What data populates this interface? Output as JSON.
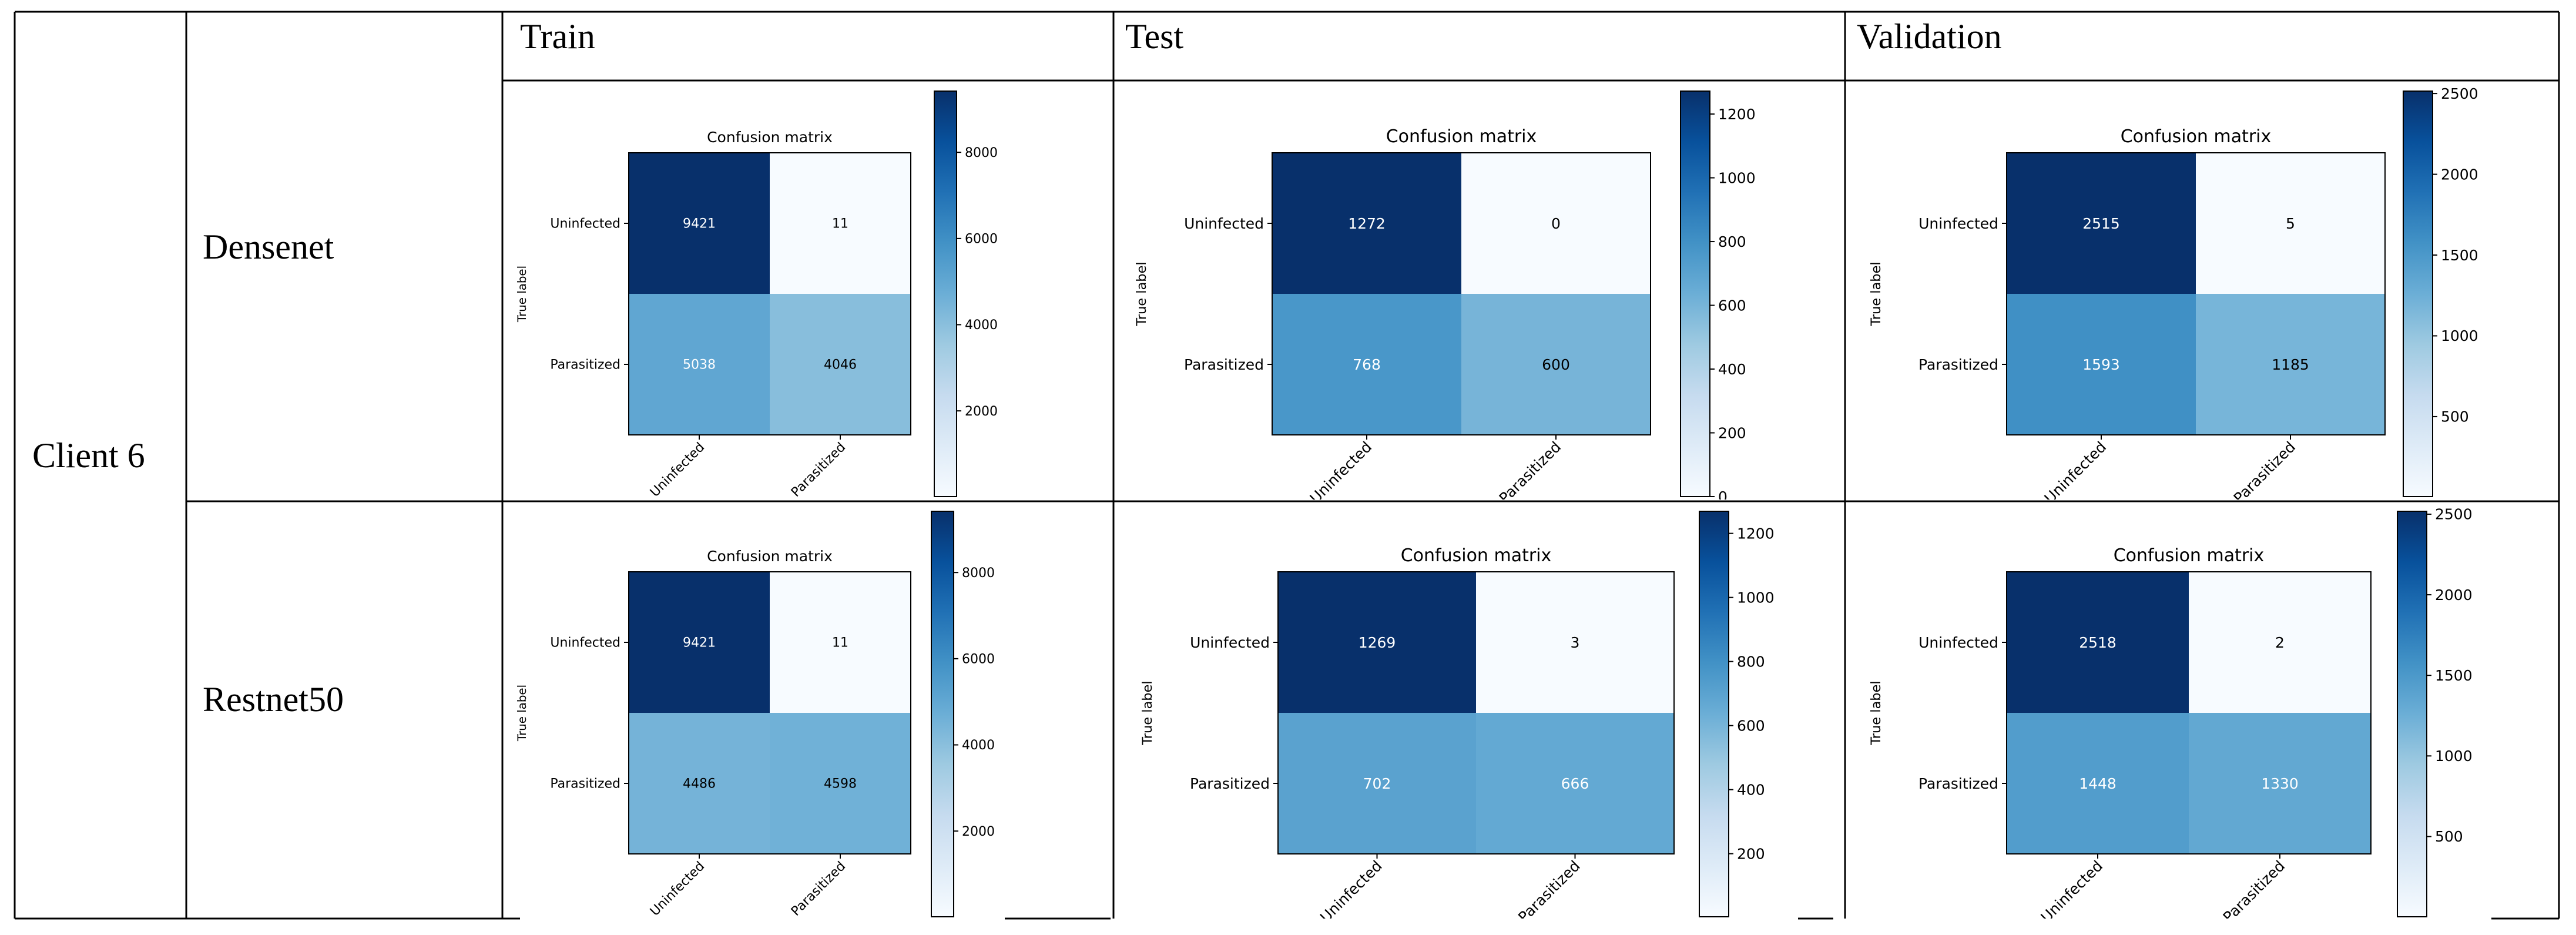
{
  "table": {
    "client_label": "Client 6",
    "columns": [
      "Train",
      "Test",
      "Validation"
    ],
    "rows": [
      {
        "model": "Densenet"
      },
      {
        "model": "Restnet50"
      }
    ]
  },
  "chart_data": [
    {
      "type": "heatmap",
      "model": "Densenet",
      "split": "Train",
      "title": "Confusion matrix",
      "ylabel": "True label",
      "categories": [
        "Uninfected",
        "Parasitized"
      ],
      "matrix": [
        [
          9421,
          11
        ],
        [
          5038,
          4046
        ]
      ],
      "colorbar_ticks": [
        2000,
        4000,
        6000,
        8000
      ],
      "vmin": 11,
      "vmax": 9421
    },
    {
      "type": "heatmap",
      "model": "Densenet",
      "split": "Test",
      "title": "Confusion matrix",
      "ylabel": "True label",
      "categories": [
        "Uninfected",
        "Parasitized"
      ],
      "matrix": [
        [
          1272,
          0
        ],
        [
          768,
          600
        ]
      ],
      "colorbar_ticks": [
        0,
        200,
        400,
        600,
        800,
        1000,
        1200
      ],
      "vmin": 0,
      "vmax": 1272
    },
    {
      "type": "heatmap",
      "model": "Densenet",
      "split": "Validation",
      "title": "Confusion matrix",
      "ylabel": "True label",
      "categories": [
        "Uninfected",
        "Parasitized"
      ],
      "matrix": [
        [
          2515,
          5
        ],
        [
          1593,
          1185
        ]
      ],
      "colorbar_ticks": [
        500,
        1000,
        1500,
        2000,
        2500
      ],
      "vmin": 5,
      "vmax": 2515
    },
    {
      "type": "heatmap",
      "model": "Restnet50",
      "split": "Train",
      "title": "Confusion matrix",
      "ylabel": "True label",
      "categories": [
        "Uninfected",
        "Parasitized"
      ],
      "matrix": [
        [
          9421,
          11
        ],
        [
          4486,
          4598
        ]
      ],
      "colorbar_ticks": [
        2000,
        4000,
        6000,
        8000
      ],
      "vmin": 11,
      "vmax": 9421
    },
    {
      "type": "heatmap",
      "model": "Restnet50",
      "split": "Test",
      "title": "Confusion matrix",
      "ylabel": "True label",
      "categories": [
        "Uninfected",
        "Parasitized"
      ],
      "matrix": [
        [
          1269,
          3
        ],
        [
          702,
          666
        ]
      ],
      "colorbar_ticks": [
        200,
        400,
        600,
        800,
        1000,
        1200
      ],
      "vmin": 3,
      "vmax": 1269
    },
    {
      "type": "heatmap",
      "model": "Restnet50",
      "split": "Validation",
      "title": "Confusion matrix",
      "ylabel": "True label",
      "categories": [
        "Uninfected",
        "Parasitized"
      ],
      "matrix": [
        [
          2518,
          2
        ],
        [
          1448,
          1330
        ]
      ],
      "colorbar_ticks": [
        500,
        1000,
        1500,
        2000,
        2500
      ],
      "vmin": 2,
      "vmax": 2518
    }
  ]
}
